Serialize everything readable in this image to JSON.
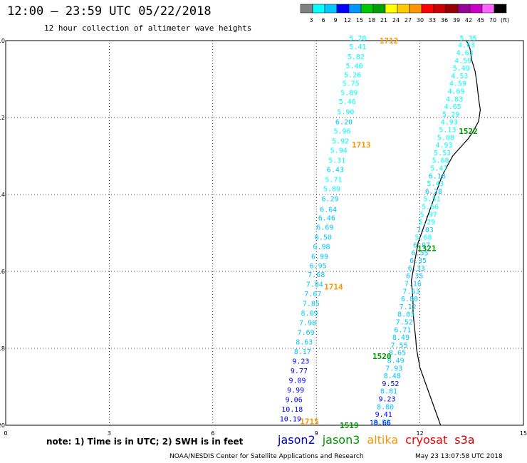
{
  "title": "12:00 – 23:59 UTC 05/22/2018",
  "subtitle": "12 hour collection of altimeter wave heights",
  "legend": {
    "colors": [
      "#808080",
      "#00ffff",
      "#00c8ff",
      "#0000ff",
      "#0096ff",
      "#00c800",
      "#00a000",
      "#ffff00",
      "#ffc800",
      "#ff9600",
      "#ff0000",
      "#c80000",
      "#960000",
      "#960096",
      "#c800c8",
      "#ff64ff",
      "#000000"
    ],
    "ticks": [
      "3",
      "6",
      "9",
      "12",
      "15",
      "18",
      "21",
      "24",
      "27",
      "30",
      "33",
      "36",
      "39",
      "42",
      "45",
      "70",
      "(ft)"
    ]
  },
  "axes": {
    "x_ticks": [
      "0",
      "3",
      "6",
      "9",
      "12",
      "15"
    ],
    "y_ticks": [
      "-10",
      "-12",
      "-14",
      "-16",
      "-18",
      "-20"
    ],
    "x_range": [
      0,
      15
    ],
    "y_range": [
      -20,
      -10
    ]
  },
  "tracks": [
    {
      "satellite": "altika",
      "orbits": [
        {
          "label": "1712",
          "x": 11.1,
          "y": -10.0
        },
        {
          "label": "1713",
          "x": 10.3,
          "y": -12.7
        },
        {
          "label": "1714",
          "x": 9.5,
          "y": -16.4
        },
        {
          "label": "1715",
          "x": 8.8,
          "y": -19.9
        }
      ],
      "points": [
        {
          "v": "5.28",
          "x": 10.2,
          "y": -10.0
        },
        {
          "v": "5.41",
          "x": 10.2,
          "y": -10.22
        },
        {
          "v": "5.82",
          "x": 10.15,
          "y": -10.48
        },
        {
          "v": "5.40",
          "x": 10.1,
          "y": -10.72
        },
        {
          "v": "5.26",
          "x": 10.05,
          "y": -10.95
        },
        {
          "v": "5.75",
          "x": 10.0,
          "y": -11.18
        },
        {
          "v": "5.89",
          "x": 9.95,
          "y": -11.42
        },
        {
          "v": "5.46",
          "x": 9.9,
          "y": -11.65
        },
        {
          "v": "5.90",
          "x": 9.85,
          "y": -11.92
        },
        {
          "v": "6.20",
          "x": 9.8,
          "y": -12.18
        },
        {
          "v": "5.96",
          "x": 9.75,
          "y": -12.42
        },
        {
          "v": "5.92",
          "x": 9.7,
          "y": -12.68
        },
        {
          "v": "5.94",
          "x": 9.65,
          "y": -12.92
        },
        {
          "v": "5.31",
          "x": 9.6,
          "y": -13.18
        },
        {
          "v": "6.43",
          "x": 9.55,
          "y": -13.42
        },
        {
          "v": "5.71",
          "x": 9.5,
          "y": -13.68
        },
        {
          "v": "5.89",
          "x": 9.45,
          "y": -13.92
        },
        {
          "v": "6.29",
          "x": 9.4,
          "y": -14.18
        },
        {
          "v": "6.64",
          "x": 9.35,
          "y": -14.45
        },
        {
          "v": "6.46",
          "x": 9.3,
          "y": -14.68
        },
        {
          "v": "6.69",
          "x": 9.25,
          "y": -14.92
        },
        {
          "v": "6.50",
          "x": 9.2,
          "y": -15.18
        },
        {
          "v": "6.98",
          "x": 9.15,
          "y": -15.42
        },
        {
          "v": "6.99",
          "x": 9.1,
          "y": -15.68
        },
        {
          "v": "6.95",
          "x": 9.05,
          "y": -15.92
        },
        {
          "v": "7.68",
          "x": 9.0,
          "y": -16.15
        },
        {
          "v": "7.84",
          "x": 8.95,
          "y": -16.4
        },
        {
          "v": "7.67",
          "x": 8.9,
          "y": -16.65
        },
        {
          "v": "7.85",
          "x": 8.85,
          "y": -16.9
        },
        {
          "v": "8.09",
          "x": 8.8,
          "y": -17.15
        },
        {
          "v": "7.98",
          "x": 8.75,
          "y": -17.4
        },
        {
          "v": "7.69",
          "x": 8.7,
          "y": -17.65
        },
        {
          "v": "8.63",
          "x": 8.65,
          "y": -17.9
        },
        {
          "v": "8.17",
          "x": 8.6,
          "y": -18.15
        },
        {
          "v": "9.23",
          "x": 8.55,
          "y": -18.4
        },
        {
          "v": "9.77",
          "x": 8.5,
          "y": -18.65
        },
        {
          "v": "9.09",
          "x": 8.45,
          "y": -18.9
        },
        {
          "v": "9.99",
          "x": 8.4,
          "y": -19.15
        },
        {
          "v": "9.06",
          "x": 8.35,
          "y": -19.4
        },
        {
          "v": "10.18",
          "x": 8.3,
          "y": -19.65
        },
        {
          "v": "10.19",
          "x": 8.25,
          "y": -19.9
        }
      ]
    },
    {
      "satellite": "jason3",
      "orbits": [
        {
          "label": "1522",
          "x": 13.4,
          "y": -12.35
        },
        {
          "label": "1321",
          "x": 12.2,
          "y": -15.4
        },
        {
          "label": "1520",
          "x": 10.9,
          "y": -18.2
        },
        {
          "label": "1519",
          "x": 9.95,
          "y": -20.0
        }
      ],
      "points": [
        {
          "v": "5.35",
          "x": 13.4,
          "y": -10.0
        },
        {
          "v": "4.63",
          "x": 13.35,
          "y": -10.18
        },
        {
          "v": "4.63",
          "x": 13.3,
          "y": -10.38
        },
        {
          "v": "4.59",
          "x": 13.25,
          "y": -10.58
        },
        {
          "v": "5.49",
          "x": 13.2,
          "y": -10.78
        },
        {
          "v": "4.53",
          "x": 13.15,
          "y": -10.98
        },
        {
          "v": "4.59",
          "x": 13.1,
          "y": -11.18
        },
        {
          "v": "4.69",
          "x": 13.05,
          "y": -11.38
        },
        {
          "v": "4.83",
          "x": 13.0,
          "y": -11.58
        },
        {
          "v": "4.65",
          "x": 12.95,
          "y": -11.78
        },
        {
          "v": "5.29",
          "x": 12.9,
          "y": -11.98
        },
        {
          "v": "4.93",
          "x": 12.85,
          "y": -12.18
        },
        {
          "v": "5.13",
          "x": 12.8,
          "y": -12.38
        },
        {
          "v": "5.08",
          "x": 12.75,
          "y": -12.58
        },
        {
          "v": "4.93",
          "x": 12.7,
          "y": -12.78
        },
        {
          "v": "5.53",
          "x": 12.65,
          "y": -12.98
        },
        {
          "v": "5.68",
          "x": 12.6,
          "y": -13.18
        },
        {
          "v": "5.47",
          "x": 12.55,
          "y": -13.38
        },
        {
          "v": "6.18",
          "x": 12.5,
          "y": -13.58
        },
        {
          "v": "5.43",
          "x": 12.45,
          "y": -13.78
        },
        {
          "v": "6.28",
          "x": 12.4,
          "y": -13.98
        },
        {
          "v": "5.51",
          "x": 12.35,
          "y": -14.18
        },
        {
          "v": "5.66",
          "x": 12.3,
          "y": -14.38
        },
        {
          "v": "5.97",
          "x": 12.25,
          "y": -14.58
        },
        {
          "v": "5.29",
          "x": 12.2,
          "y": -14.78
        },
        {
          "v": "7.03",
          "x": 12.15,
          "y": -14.98
        },
        {
          "v": "5.68",
          "x": 12.1,
          "y": -15.18
        },
        {
          "v": "6.07",
          "x": 12.05,
          "y": -15.38
        },
        {
          "v": "6.55",
          "x": 12.0,
          "y": -15.58
        },
        {
          "v": "6.35",
          "x": 11.95,
          "y": -15.78
        },
        {
          "v": "6.33",
          "x": 11.9,
          "y": -15.98
        },
        {
          "v": "6.35",
          "x": 11.85,
          "y": -16.18
        },
        {
          "v": "7.16",
          "x": 11.8,
          "y": -16.38
        },
        {
          "v": "7.63",
          "x": 11.75,
          "y": -16.58
        },
        {
          "v": "6.80",
          "x": 11.7,
          "y": -16.78
        },
        {
          "v": "7.12",
          "x": 11.65,
          "y": -16.98
        },
        {
          "v": "8.03",
          "x": 11.6,
          "y": -17.18
        },
        {
          "v": "7.52",
          "x": 11.55,
          "y": -17.38
        },
        {
          "v": "6.71",
          "x": 11.5,
          "y": -17.58
        },
        {
          "v": "8.49",
          "x": 11.45,
          "y": -17.78
        },
        {
          "v": "7.55",
          "x": 11.4,
          "y": -17.98
        },
        {
          "v": "8.65",
          "x": 11.35,
          "y": -18.18
        },
        {
          "v": "8.49",
          "x": 11.3,
          "y": -18.38
        },
        {
          "v": "7.93",
          "x": 11.25,
          "y": -18.58
        },
        {
          "v": "8.48",
          "x": 11.2,
          "y": -18.78
        },
        {
          "v": "9.52",
          "x": 11.15,
          "y": -18.98
        },
        {
          "v": "8.81",
          "x": 11.1,
          "y": -19.18
        },
        {
          "v": "9.23",
          "x": 11.05,
          "y": -19.38
        },
        {
          "v": "8.80",
          "x": 11.0,
          "y": -19.58
        },
        {
          "v": "9.41",
          "x": 10.95,
          "y": -19.78
        },
        {
          "v": "8.98",
          "x": 10.9,
          "y": -19.98
        },
        {
          "v": "10.66",
          "x": 10.85,
          "y": -20.0
        }
      ]
    }
  ],
  "coastline": [
    [
      13.35,
      -10.0
    ],
    [
      13.45,
      -10.2
    ],
    [
      13.5,
      -10.5
    ],
    [
      13.6,
      -10.8
    ],
    [
      13.65,
      -11.1
    ],
    [
      13.7,
      -11.5
    ],
    [
      13.75,
      -11.8
    ],
    [
      13.7,
      -12.1
    ],
    [
      13.55,
      -12.35
    ],
    [
      13.4,
      -12.55
    ],
    [
      13.2,
      -12.75
    ],
    [
      12.95,
      -13.0
    ],
    [
      12.8,
      -13.25
    ],
    [
      12.65,
      -13.5
    ],
    [
      12.55,
      -13.75
    ],
    [
      12.45,
      -14.0
    ],
    [
      12.35,
      -14.25
    ],
    [
      12.25,
      -14.5
    ],
    [
      12.15,
      -14.75
    ],
    [
      12.05,
      -15.0
    ],
    [
      11.95,
      -15.25
    ],
    [
      11.9,
      -15.5
    ],
    [
      11.85,
      -15.75
    ],
    [
      11.8,
      -16.0
    ],
    [
      11.75,
      -16.25
    ],
    [
      11.78,
      -16.5
    ],
    [
      11.8,
      -16.75
    ],
    [
      11.8,
      -17.0
    ],
    [
      11.82,
      -17.25
    ],
    [
      11.85,
      -17.5
    ],
    [
      11.88,
      -17.75
    ],
    [
      11.9,
      -18.0
    ],
    [
      11.95,
      -18.25
    ],
    [
      12.0,
      -18.5
    ],
    [
      12.1,
      -18.75
    ],
    [
      12.2,
      -19.0
    ],
    [
      12.3,
      -19.25
    ],
    [
      12.4,
      -19.5
    ],
    [
      12.5,
      -19.75
    ],
    [
      12.6,
      -20.0
    ]
  ],
  "note": "note: 1) Time is in UTC; 2) SWH is in feet",
  "satellites": [
    {
      "name": "jason2",
      "color": "#0000c8"
    },
    {
      "name": "jason3",
      "color": "#009600"
    },
    {
      "name": "altika",
      "color": "#ff9600"
    },
    {
      "name": "cryosat",
      "color": "#ff0000"
    },
    {
      "name": "s3a",
      "color": "#c80000"
    }
  ],
  "credit": "NOAA/NESDIS Center for Satellite Applications and Research",
  "timestamp": "May 23 13:07:58 UTC 2018"
}
